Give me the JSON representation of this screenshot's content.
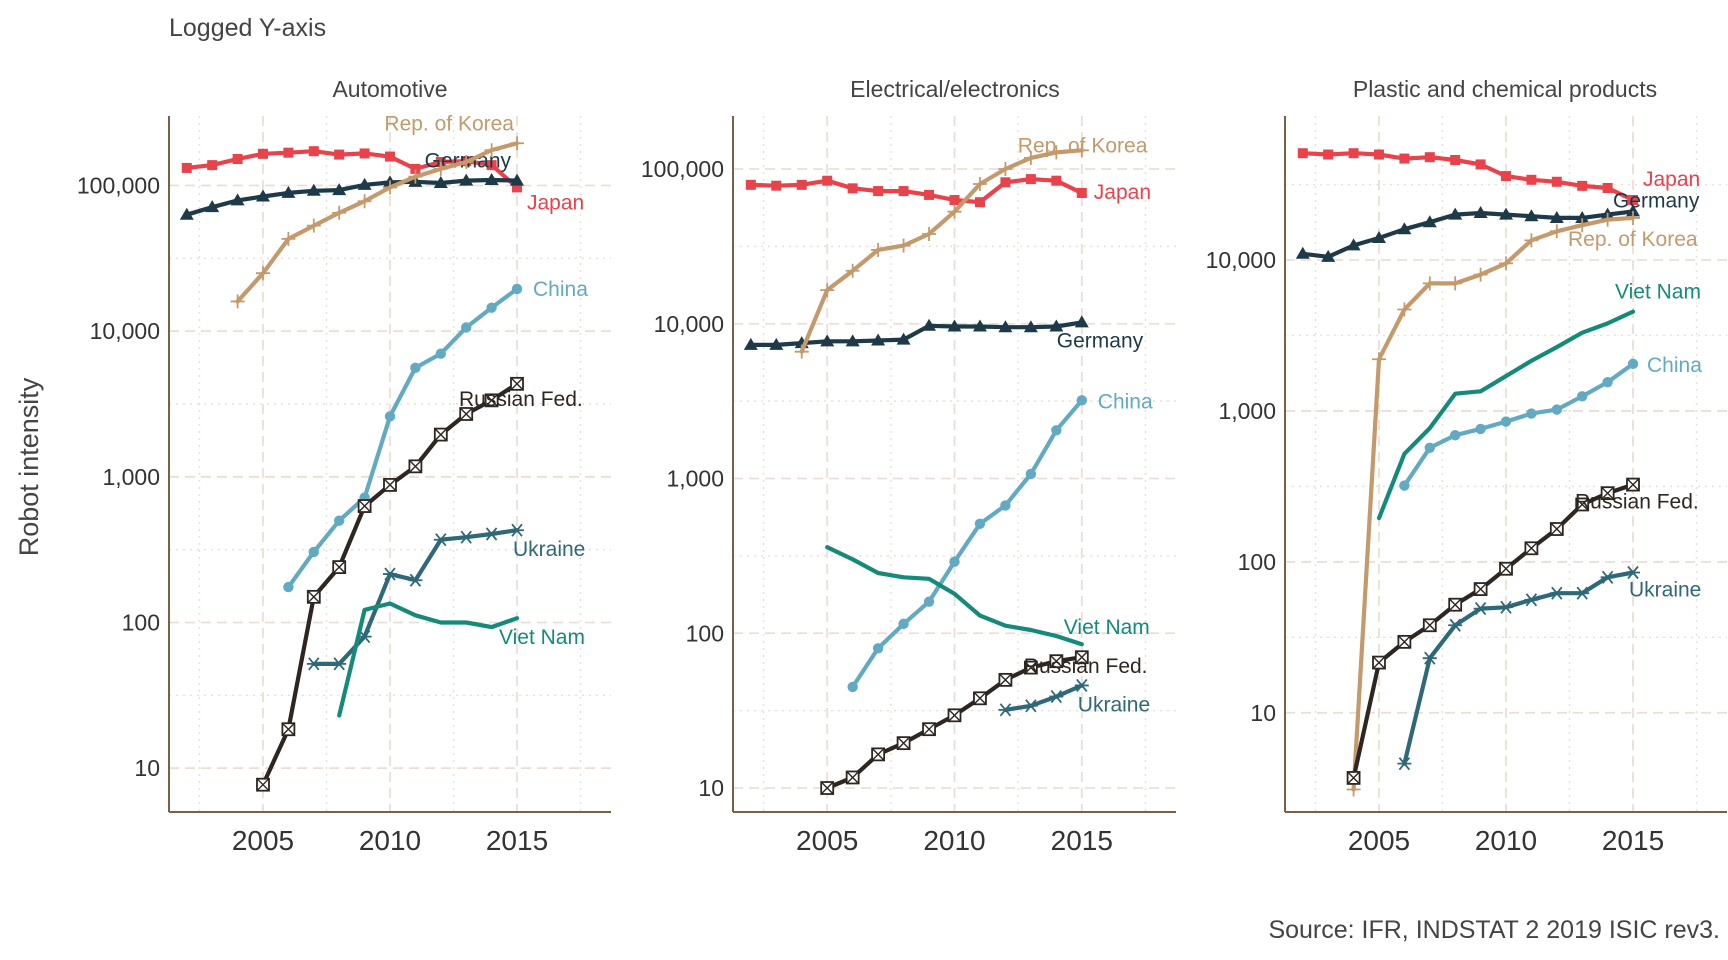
{
  "subtitle": "Logged Y-axis",
  "ylabel": "Robot intensity",
  "caption": "Source: IFR, INDSTAT 2 2019 ISIC rev3.",
  "colors": {
    "Japan": "#E8424A",
    "Germany": "#1E3A48",
    "Rep. of Korea": "#C49A6C",
    "China": "#62AAC2",
    "Russian Fed.": "#2E2620",
    "Ukraine": "#2F6878",
    "Viet Nam": "#158A7A",
    "axis": "#7A6048",
    "grid": "#EADFD4",
    "text": "#444444"
  },
  "chart_data": [
    {
      "type": "line",
      "title": "Automotive",
      "xlim": [
        2001.3,
        2018.7
      ],
      "xticks": [
        2005,
        2010,
        2015
      ],
      "ylog": true,
      "ylim": [
        5,
        300000
      ],
      "yticks": [
        10,
        100,
        1000,
        10000,
        100000
      ],
      "ytick_labels": [
        "10",
        "100",
        "1,000",
        "10,000",
        "100,000"
      ],
      "series": [
        {
          "name": "Japan",
          "marker": "square",
          "x": [
            2002,
            2003,
            2004,
            2005,
            2006,
            2007,
            2008,
            2009,
            2010,
            2011,
            2012,
            2013,
            2014,
            2015
          ],
          "y": [
            132000,
            138000,
            152000,
            165000,
            168000,
            172000,
            163000,
            166000,
            158000,
            130000,
            145000,
            147000,
            138000,
            97000
          ]
        },
        {
          "name": "Germany",
          "marker": "triangle",
          "x": [
            2002,
            2003,
            2004,
            2005,
            2006,
            2007,
            2008,
            2009,
            2010,
            2011,
            2012,
            2013,
            2014,
            2015
          ],
          "y": [
            63000,
            71000,
            79000,
            84000,
            89000,
            92000,
            93000,
            101000,
            105000,
            106000,
            104000,
            108000,
            109000,
            108000
          ]
        },
        {
          "name": "Rep. of Korea",
          "marker": "plus",
          "x": [
            2004,
            2005,
            2006,
            2007,
            2008,
            2009,
            2010,
            2011,
            2012,
            2013,
            2014,
            2015
          ],
          "y": [
            16000,
            25000,
            43000,
            53000,
            65000,
            78000,
            97000,
            115000,
            130000,
            145000,
            175000,
            195000
          ]
        },
        {
          "name": "China",
          "marker": "circle",
          "x": [
            2006,
            2007,
            2008,
            2009,
            2010,
            2011,
            2012,
            2013,
            2014,
            2015
          ],
          "y": [
            175,
            305,
            500,
            720,
            2600,
            5600,
            7000,
            10600,
            14500,
            19500
          ]
        },
        {
          "name": "Russian Fed.",
          "marker": "boxx",
          "x": [
            2005,
            2006,
            2007,
            2008,
            2009,
            2010,
            2011,
            2012,
            2013,
            2014,
            2015
          ],
          "y": [
            7.7,
            18.5,
            150,
            240,
            630,
            880,
            1180,
            1950,
            2700,
            3350,
            4350
          ]
        },
        {
          "name": "Ukraine",
          "marker": "star",
          "x": [
            2007,
            2008,
            2009,
            2010,
            2011,
            2012,
            2013,
            2014,
            2015
          ],
          "y": [
            52,
            52,
            80,
            215,
            195,
            370,
            385,
            405,
            430
          ]
        },
        {
          "name": "Viet Nam",
          "marker": "none",
          "x": [
            2008,
            2009,
            2010,
            2011,
            2012,
            2013,
            2014,
            2015
          ],
          "y": [
            23,
            122,
            135,
            112,
            100,
            100,
            93,
            107
          ]
        }
      ]
    },
    {
      "type": "line",
      "title": "Electrical/electronics",
      "xlim": [
        2001.3,
        2018.7
      ],
      "xticks": [
        2005,
        2010,
        2015
      ],
      "ylog": true,
      "ylim": [
        7,
        220000
      ],
      "yticks": [
        10,
        100,
        1000,
        10000,
        100000
      ],
      "ytick_labels": [
        "10",
        "100",
        "1,000",
        "10,000",
        "100,000"
      ],
      "series": [
        {
          "name": "Japan",
          "marker": "square",
          "x": [
            2002,
            2003,
            2004,
            2005,
            2006,
            2007,
            2008,
            2009,
            2010,
            2011,
            2012,
            2013,
            2014,
            2015
          ],
          "y": [
            79000,
            78000,
            79000,
            84000,
            75000,
            72000,
            72000,
            68000,
            63000,
            61000,
            82000,
            86000,
            84000,
            70000
          ]
        },
        {
          "name": "Germany",
          "marker": "triangle",
          "x": [
            2002,
            2003,
            2004,
            2005,
            2006,
            2007,
            2008,
            2009,
            2010,
            2011,
            2012,
            2013,
            2014,
            2015
          ],
          "y": [
            7300,
            7300,
            7500,
            7700,
            7700,
            7800,
            7900,
            9700,
            9600,
            9600,
            9500,
            9500,
            9600,
            10200
          ]
        },
        {
          "name": "Rep. of Korea",
          "marker": "plus",
          "x": [
            2004,
            2005,
            2006,
            2007,
            2008,
            2009,
            2010,
            2011,
            2012,
            2013,
            2014,
            2015
          ],
          "y": [
            6600,
            16500,
            22000,
            30000,
            32000,
            38000,
            53000,
            80000,
            100000,
            118000,
            128000,
            132000
          ]
        },
        {
          "name": "China",
          "marker": "circle",
          "x": [
            2006,
            2007,
            2008,
            2009,
            2010,
            2011,
            2012,
            2013,
            2014,
            2015
          ],
          "y": [
            45,
            80,
            115,
            160,
            290,
            510,
            670,
            1070,
            2050,
            3200
          ]
        },
        {
          "name": "Russian Fed.",
          "marker": "boxx",
          "x": [
            2005,
            2006,
            2007,
            2008,
            2009,
            2010,
            2011,
            2012,
            2013,
            2014,
            2015
          ],
          "y": [
            10,
            11.7,
            16.5,
            19.5,
            24,
            29.5,
            38,
            50,
            60,
            66,
            70
          ]
        },
        {
          "name": "Ukraine",
          "marker": "star",
          "x": [
            2012,
            2013,
            2014,
            2015
          ],
          "y": [
            32,
            34,
            39,
            46
          ]
        },
        {
          "name": "Viet Nam",
          "marker": "none",
          "x": [
            2005,
            2006,
            2007,
            2008,
            2009,
            2010,
            2011,
            2012,
            2013,
            2014,
            2015
          ],
          "y": [
            360,
            300,
            245,
            230,
            225,
            180,
            130,
            112,
            105,
            96,
            85
          ]
        }
      ]
    },
    {
      "type": "line",
      "title": "Plastic and chemical products",
      "xlim": [
        2001.3,
        2018.7
      ],
      "xticks": [
        2005,
        2010,
        2015
      ],
      "ylog": true,
      "ylim": [
        2.2,
        90000
      ],
      "yticks": [
        10,
        100,
        1000,
        10000
      ],
      "ytick_labels": [
        "10",
        "100",
        "1,000",
        "10,000"
      ],
      "series": [
        {
          "name": "Japan",
          "marker": "square",
          "x": [
            2002,
            2003,
            2004,
            2005,
            2006,
            2007,
            2008,
            2009,
            2010,
            2011,
            2012,
            2013,
            2014,
            2015
          ],
          "y": [
            51000,
            50000,
            51000,
            50000,
            47000,
            48000,
            46000,
            43000,
            36000,
            34000,
            33000,
            31000,
            30000,
            25000
          ]
        },
        {
          "name": "Germany",
          "marker": "triangle",
          "x": [
            2002,
            2003,
            2004,
            2005,
            2006,
            2007,
            2008,
            2009,
            2010,
            2011,
            2012,
            2013,
            2014,
            2015
          ],
          "y": [
            11000,
            10500,
            12500,
            14000,
            16000,
            17800,
            20000,
            20500,
            20000,
            19500,
            19000,
            19000,
            20000,
            21000
          ]
        },
        {
          "name": "Rep. of Korea",
          "marker": "plus",
          "x": [
            2004,
            2005,
            2006,
            2007,
            2008,
            2009,
            2010,
            2011,
            2012,
            2013,
            2014,
            2015
          ],
          "y": [
            3.1,
            2200,
            4700,
            7000,
            7000,
            8000,
            9500,
            13500,
            15500,
            17000,
            18500,
            19000
          ]
        },
        {
          "name": "China",
          "marker": "circle",
          "x": [
            2006,
            2007,
            2008,
            2009,
            2010,
            2011,
            2012,
            2013,
            2014,
            2015
          ],
          "y": [
            320,
            570,
            690,
            760,
            850,
            960,
            1020,
            1250,
            1550,
            2050
          ]
        },
        {
          "name": "Russian Fed.",
          "marker": "boxx",
          "x": [
            2004,
            2005,
            2006,
            2007,
            2008,
            2009,
            2010,
            2011,
            2012,
            2013,
            2014,
            2015
          ],
          "y": [
            3.7,
            21.5,
            29.5,
            38,
            52,
            66,
            90,
            123,
            165,
            240,
            285,
            325
          ]
        },
        {
          "name": "Ukraine",
          "marker": "star",
          "x": [
            2006,
            2007,
            2008,
            2009,
            2010,
            2011,
            2012,
            2013,
            2014,
            2015
          ],
          "y": [
            4.6,
            23,
            38,
            49,
            50,
            56,
            62,
            62,
            79,
            85
          ]
        },
        {
          "name": "Viet Nam",
          "marker": "none",
          "x": [
            2005,
            2006,
            2007,
            2008,
            2009,
            2010,
            2011,
            2012,
            2013,
            2014,
            2015
          ],
          "y": [
            195,
            520,
            770,
            1300,
            1350,
            1700,
            2150,
            2650,
            3300,
            3800,
            4550
          ]
        }
      ]
    }
  ]
}
